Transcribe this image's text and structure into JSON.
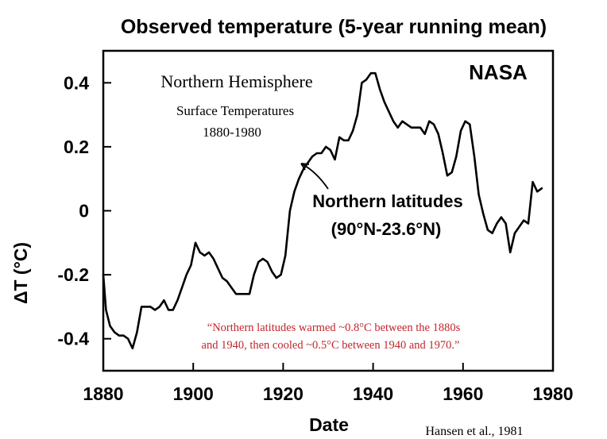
{
  "chart_data": {
    "type": "line",
    "title": "Observed temperature (5-year running mean)",
    "xlabel": "Date",
    "ylabel": "ΔT (°C)",
    "xlim": [
      1880,
      1980
    ],
    "ylim": [
      -0.5,
      0.5
    ],
    "grid": false,
    "x_ticks": [
      1880,
      1900,
      1920,
      1940,
      1960,
      1980
    ],
    "x_tick_labels": [
      "1880",
      "1900",
      "1920",
      "1940",
      "1960",
      "1980"
    ],
    "y_ticks": [
      0.4,
      0.2,
      0,
      -0.2,
      -0.4
    ],
    "y_tick_labels": [
      "0.4",
      "0.2",
      "0",
      "-0.2",
      "-0.4"
    ],
    "series": [
      {
        "x": [
          1880,
          1880.6,
          1881.5,
          1882.5,
          1883.5,
          1884.5,
          1885.5,
          1886.5,
          1887.5,
          1888.5,
          1889.5,
          1890.5,
          1891.5,
          1892.5,
          1893.5,
          1894.5,
          1895.5,
          1896.5,
          1897.5,
          1898.5,
          1899.5,
          1900.5,
          1901.5,
          1902.5,
          1903.5,
          1904.5,
          1905.5,
          1906.5,
          1907.5,
          1908.5,
          1909.5,
          1910.5,
          1911.5,
          1912.5,
          1913.5,
          1914.5,
          1915.5,
          1916.5,
          1917.5,
          1918.5,
          1919.5,
          1920.5,
          1921.5,
          1922.5,
          1923.5,
          1924.5,
          1925.5,
          1926.5,
          1927.5,
          1928.5,
          1929.5,
          1930.5,
          1931.5,
          1932.5,
          1933.5,
          1934.5,
          1935.5,
          1936.5,
          1937.5,
          1938.5,
          1939.5,
          1940.5,
          1941.5,
          1942.5,
          1943.5,
          1944.5,
          1945.5,
          1946.5,
          1947.5,
          1948.5,
          1949.5,
          1950.5,
          1951.5,
          1952.5,
          1953.5,
          1954.5,
          1955.5,
          1956.5,
          1957.5,
          1958.5,
          1959.5,
          1960.5,
          1961.5,
          1962.5,
          1963.5,
          1964.5,
          1965.5,
          1966.5,
          1967.5,
          1968.5,
          1969.5,
          1970.5,
          1971.5,
          1972.5,
          1973.5,
          1974.5,
          1975.5,
          1976.5,
          1977.5
        ],
        "values": [
          -0.2,
          -0.31,
          -0.36,
          -0.38,
          -0.39,
          -0.39,
          -0.4,
          -0.43,
          -0.38,
          -0.3,
          -0.3,
          -0.3,
          -0.31,
          -0.3,
          -0.28,
          -0.31,
          -0.31,
          -0.28,
          -0.24,
          -0.2,
          -0.17,
          -0.1,
          -0.13,
          -0.14,
          -0.13,
          -0.15,
          -0.18,
          -0.21,
          -0.22,
          -0.24,
          -0.26,
          -0.26,
          -0.26,
          -0.26,
          -0.2,
          -0.16,
          -0.15,
          -0.16,
          -0.19,
          -0.21,
          -0.2,
          -0.14,
          0.0,
          0.06,
          0.1,
          0.13,
          0.15,
          0.17,
          0.18,
          0.18,
          0.2,
          0.19,
          0.16,
          0.23,
          0.22,
          0.22,
          0.25,
          0.3,
          0.4,
          0.41,
          0.43,
          0.43,
          0.38,
          0.34,
          0.31,
          0.28,
          0.26,
          0.28,
          0.27,
          0.26,
          0.26,
          0.26,
          0.24,
          0.28,
          0.27,
          0.24,
          0.18,
          0.11,
          0.12,
          0.17,
          0.25,
          0.28,
          0.27,
          0.17,
          0.05,
          -0.01,
          -0.06,
          -0.07,
          -0.04,
          -0.02,
          -0.04,
          -0.13,
          -0.07,
          -0.05,
          -0.03,
          -0.04,
          0.09,
          0.06,
          0.07
        ]
      }
    ]
  },
  "annotations": {
    "source_logo": "NASA",
    "panel_title": "Northern Hemisphere",
    "panel_subtitle_1": "Surface Temperatures",
    "panel_subtitle_2": "1880-1980",
    "series_label_1": "Northern latitudes",
    "series_label_2": "(90°N-23.6°N)",
    "quote_line_1": "“Northern latitudes warmed ~0.8°C between the 1880s",
    "quote_line_2": "and 1940, then cooled ~0.5°C between 1940 and 1970.”",
    "citation": "Hansen et al., 1981"
  },
  "colors": {
    "line": "#000000",
    "quote": "#c0262d",
    "background": "#ffffff"
  }
}
